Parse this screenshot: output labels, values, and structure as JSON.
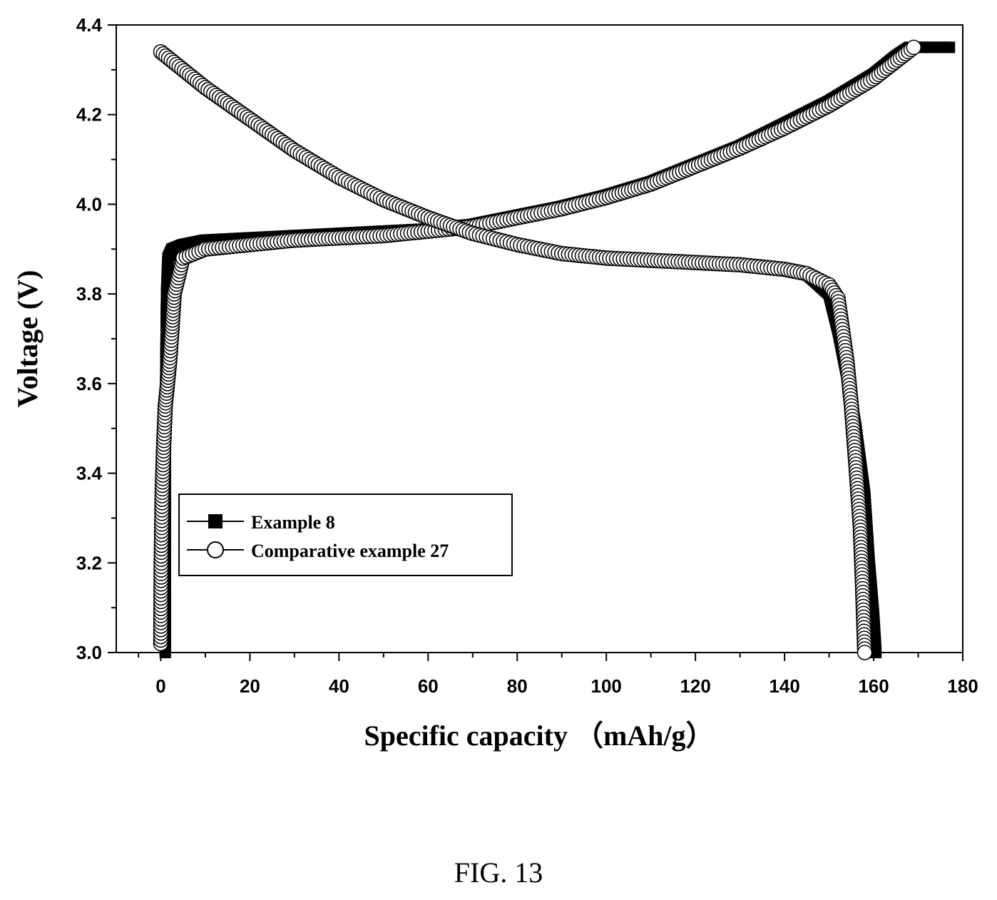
{
  "caption": "FIG. 13",
  "chart_data": {
    "type": "line",
    "title": "",
    "xlabel": "Specific capacity （mAh/g）",
    "ylabel": "Voltage (V)",
    "xlim": [
      -10,
      180
    ],
    "ylim": [
      3.0,
      4.4
    ],
    "x_ticks": [
      0,
      20,
      40,
      60,
      80,
      100,
      120,
      140,
      160,
      180
    ],
    "y_ticks": [
      3.0,
      3.2,
      3.4,
      3.6,
      3.8,
      4.0,
      4.2,
      4.4
    ],
    "legend_position": "lower-left",
    "grid": false,
    "series": [
      {
        "name": "Example 8",
        "marker": "filled-square",
        "color": "#000000",
        "charge": {
          "x": [
            1.0,
            1.0,
            1.1,
            1.3,
            1.6,
            2.5,
            5,
            10,
            20,
            30,
            40,
            50,
            60,
            70,
            80,
            90,
            100,
            110,
            120,
            130,
            140,
            150,
            160,
            165,
            168,
            175,
            177
          ],
          "y": [
            3.0,
            3.4,
            3.6,
            3.8,
            3.88,
            3.9,
            3.91,
            3.92,
            3.925,
            3.93,
            3.935,
            3.94,
            3.945,
            3.955,
            3.975,
            3.995,
            4.02,
            4.05,
            4.09,
            4.13,
            4.18,
            4.23,
            4.29,
            4.33,
            4.35,
            4.35,
            4.35
          ]
        },
        "discharge": {
          "x": [
            0,
            10,
            20,
            30,
            40,
            50,
            60,
            70,
            80,
            90,
            100,
            110,
            120,
            130,
            140,
            145,
            150,
            152,
            154,
            156,
            158,
            159,
            160,
            160.5
          ],
          "y": [
            4.34,
            4.26,
            4.19,
            4.12,
            4.06,
            4.01,
            3.97,
            3.935,
            3.91,
            3.89,
            3.88,
            3.875,
            3.87,
            3.865,
            3.855,
            3.845,
            3.8,
            3.72,
            3.62,
            3.5,
            3.35,
            3.2,
            3.08,
            3.0
          ]
        }
      },
      {
        "name": "Comparative example 27",
        "marker": "open-circle",
        "color": "#000000",
        "charge": {
          "x": [
            0,
            0.1,
            0.3,
            0.6,
            1.0,
            1.5,
            2.0,
            2.5,
            3.0,
            5,
            10,
            20,
            30,
            40,
            50,
            60,
            70,
            80,
            90,
            100,
            110,
            120,
            130,
            140,
            150,
            160,
            169
          ],
          "y": [
            3.02,
            3.2,
            3.35,
            3.45,
            3.55,
            3.6,
            3.65,
            3.72,
            3.8,
            3.88,
            3.9,
            3.91,
            3.92,
            3.925,
            3.93,
            3.94,
            3.95,
            3.97,
            3.99,
            4.015,
            4.045,
            4.085,
            4.125,
            4.17,
            4.22,
            4.28,
            4.35
          ]
        },
        "discharge": {
          "x": [
            0,
            10,
            20,
            30,
            40,
            50,
            60,
            70,
            80,
            90,
            100,
            110,
            120,
            130,
            140,
            145,
            150,
            152,
            153,
            154,
            155,
            156,
            157,
            157.5,
            158
          ],
          "y": [
            4.34,
            4.26,
            4.19,
            4.12,
            4.06,
            4.01,
            3.97,
            3.935,
            3.91,
            3.89,
            3.88,
            3.875,
            3.87,
            3.865,
            3.855,
            3.845,
            3.82,
            3.79,
            3.72,
            3.65,
            3.55,
            3.42,
            3.28,
            3.15,
            3.0
          ]
        }
      }
    ]
  }
}
